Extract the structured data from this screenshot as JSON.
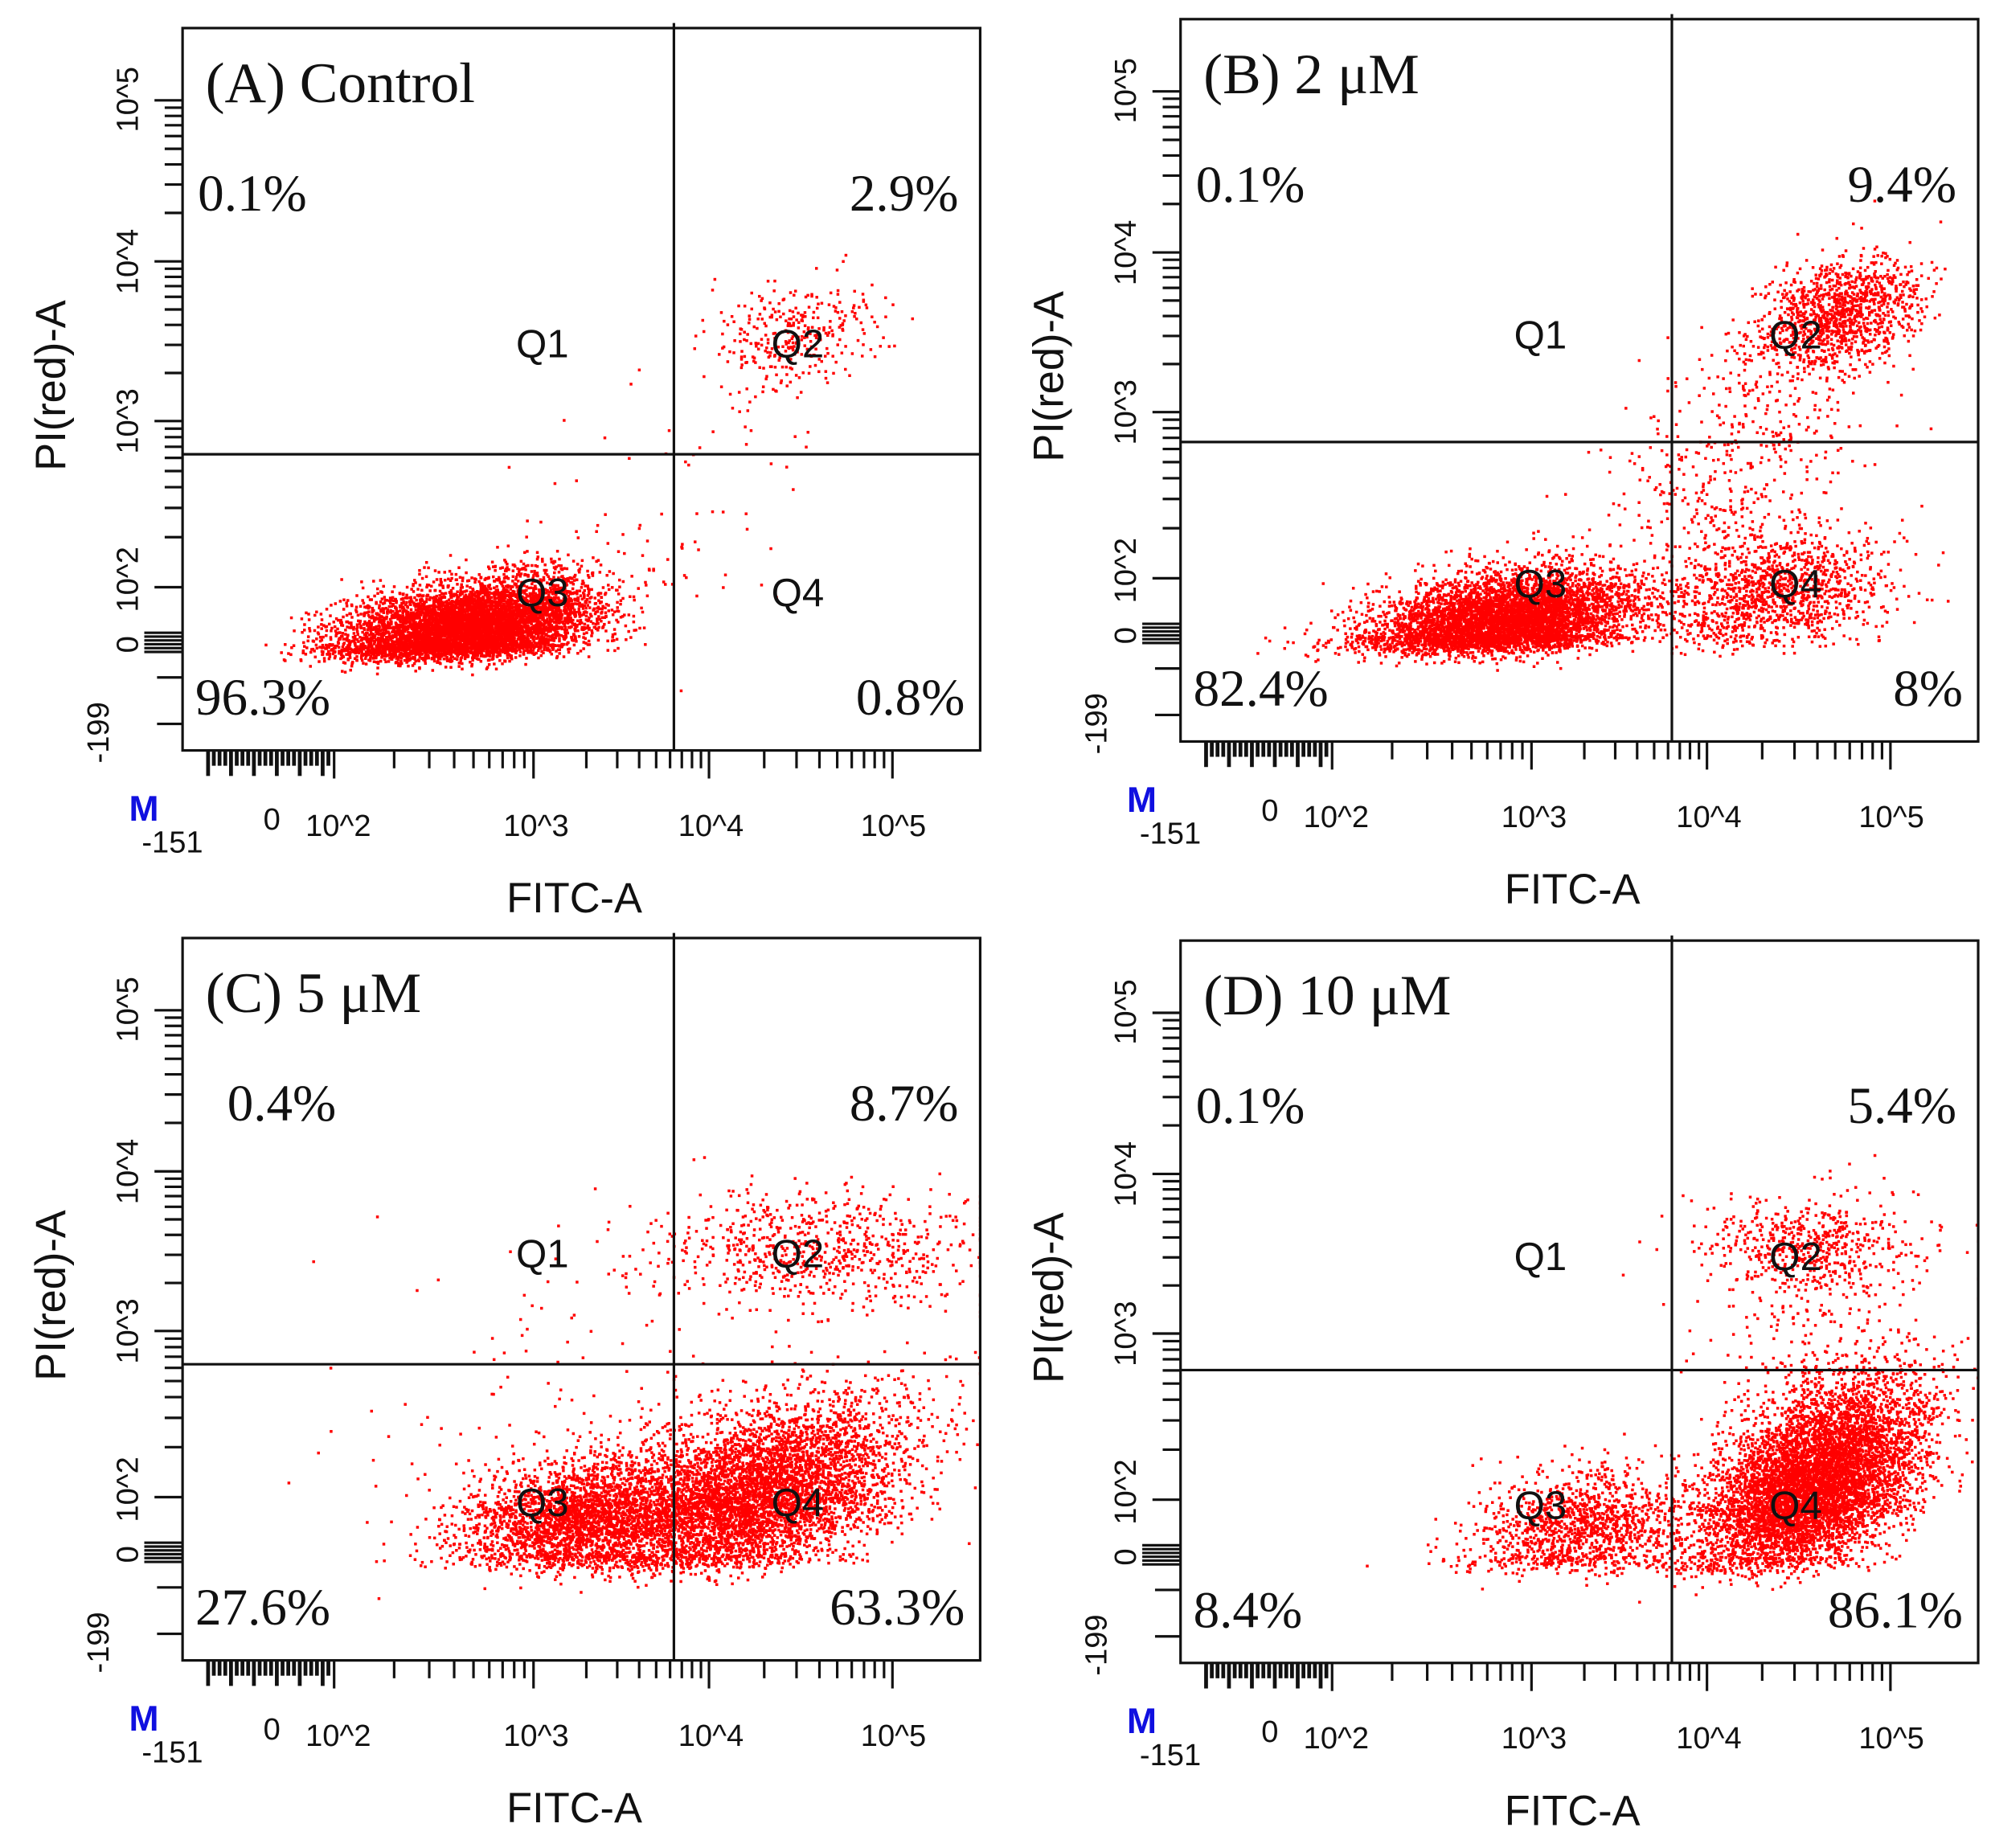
{
  "colors": {
    "points": "#ff0000",
    "frame": "#111111",
    "marker": "#1010e0"
  },
  "chart_data": [
    {
      "type": "scatter",
      "panel": "A",
      "title": "(A) Control",
      "xlabel": "FITC-A",
      "ylabel": "PI(red)-A",
      "marker_label": "M",
      "x_tick_labels": [
        "-151",
        "0",
        "10^2",
        "10^3",
        "10^4",
        "10^5"
      ],
      "y_tick_labels": [
        "10^5",
        "10^4",
        "10^3",
        "10^2",
        "0",
        "-199"
      ],
      "gate_log10": {
        "x": 3.8,
        "y": 2.8
      },
      "quadrants": [
        {
          "name": "Q1",
          "percent": "0.1%"
        },
        {
          "name": "Q2",
          "percent": "2.9%"
        },
        {
          "name": "Q3",
          "percent": "96.3%"
        },
        {
          "name": "Q4",
          "percent": "0.8%"
        }
      ],
      "clusters_log10": [
        {
          "x": 2.68,
          "y": 1.72,
          "sx": 0.32,
          "sy": 0.16,
          "rho": 0.35,
          "n": 6500
        },
        {
          "x": 4.45,
          "y": 3.52,
          "sx": 0.22,
          "sy": 0.16,
          "rho": 0.2,
          "n": 320
        },
        {
          "x": 3.7,
          "y": 2.3,
          "sx": 0.5,
          "sy": 0.5,
          "rho": 0.5,
          "n": 90
        }
      ]
    },
    {
      "type": "scatter",
      "panel": "B",
      "title": "(B) 2 μM",
      "xlabel": "FITC-A",
      "ylabel": "PI(red)-A",
      "marker_label": "M",
      "x_tick_labels": [
        "-151",
        "0",
        "10^2",
        "10^3",
        "10^4",
        "10^5"
      ],
      "y_tick_labels": [
        "10^5",
        "10^4",
        "10^3",
        "10^2",
        "0",
        "-199"
      ],
      "gate_log10": {
        "x": 3.8,
        "y": 2.82
      },
      "quadrants": [
        {
          "name": "Q1",
          "percent": "0.1%"
        },
        {
          "name": "Q2",
          "percent": "9.4%"
        },
        {
          "name": "Q3",
          "percent": "82.4%"
        },
        {
          "name": "Q4",
          "percent": "8%"
        }
      ],
      "clusters_log10": [
        {
          "x": 2.88,
          "y": 1.7,
          "sx": 0.34,
          "sy": 0.17,
          "rho": 0.3,
          "n": 5500
        },
        {
          "x": 4.35,
          "y": 1.9,
          "sx": 0.33,
          "sy": 0.2,
          "rho": 0.2,
          "n": 1300
        },
        {
          "x": 4.72,
          "y": 3.62,
          "sx": 0.22,
          "sy": 0.17,
          "rho": 0.3,
          "n": 1100
        },
        {
          "x": 4.2,
          "y": 2.8,
          "sx": 0.4,
          "sy": 0.45,
          "rho": 0.6,
          "n": 500
        }
      ]
    },
    {
      "type": "scatter",
      "panel": "C",
      "title": "(C)  5 μM",
      "xlabel": "FITC-A",
      "ylabel": "PI(red)-A",
      "marker_label": "M",
      "x_tick_labels": [
        "-151",
        "0",
        "10^2",
        "10^3",
        "10^4",
        "10^5"
      ],
      "y_tick_labels": [
        "10^5",
        "10^4",
        "10^3",
        "10^2",
        "0",
        "-199"
      ],
      "gate_log10": {
        "x": 3.8,
        "y": 2.8
      },
      "quadrants": [
        {
          "name": "Q1",
          "percent": "0.4%"
        },
        {
          "name": "Q2",
          "percent": "8.7%"
        },
        {
          "name": "Q3",
          "percent": "27.6%"
        },
        {
          "name": "Q4",
          "percent": "63.3%"
        }
      ],
      "clusters_log10": [
        {
          "x": 3.25,
          "y": 1.85,
          "sx": 0.32,
          "sy": 0.2,
          "rho": 0.2,
          "n": 2600
        },
        {
          "x": 4.25,
          "y": 2.0,
          "sx": 0.4,
          "sy": 0.28,
          "rho": 0.45,
          "n": 5200
        },
        {
          "x": 4.55,
          "y": 3.5,
          "sx": 0.45,
          "sy": 0.2,
          "rho": 0.1,
          "n": 750
        },
        {
          "x": 3.2,
          "y": 2.5,
          "sx": 0.7,
          "sy": 0.6,
          "rho": 0.2,
          "n": 120
        }
      ]
    },
    {
      "type": "scatter",
      "panel": "D",
      "title": "(D) 10 μM",
      "xlabel": "FITC-A",
      "ylabel": "PI(red)-A",
      "marker_label": "M",
      "x_tick_labels": [
        "-151",
        "0",
        "10^2",
        "10^3",
        "10^4",
        "10^5"
      ],
      "y_tick_labels": [
        "10^5",
        "10^4",
        "10^3",
        "10^2",
        "0",
        "-199"
      ],
      "gate_log10": {
        "x": 3.8,
        "y": 2.78
      },
      "quadrants": [
        {
          "name": "Q1",
          "percent": "0.1%"
        },
        {
          "name": "Q2",
          "percent": "5.4%"
        },
        {
          "name": "Q3",
          "percent": "8.4%"
        },
        {
          "name": "Q4",
          "percent": "86.1%"
        }
      ],
      "clusters_log10": [
        {
          "x": 3.3,
          "y": 1.8,
          "sx": 0.3,
          "sy": 0.2,
          "rho": 0.2,
          "n": 1300
        },
        {
          "x": 4.58,
          "y": 2.1,
          "sx": 0.3,
          "sy": 0.3,
          "rho": 0.5,
          "n": 6500
        },
        {
          "x": 4.55,
          "y": 3.55,
          "sx": 0.3,
          "sy": 0.15,
          "rho": 0.0,
          "n": 550
        },
        {
          "x": 4.5,
          "y": 2.9,
          "sx": 0.25,
          "sy": 0.4,
          "rho": 0.2,
          "n": 200
        }
      ]
    }
  ]
}
